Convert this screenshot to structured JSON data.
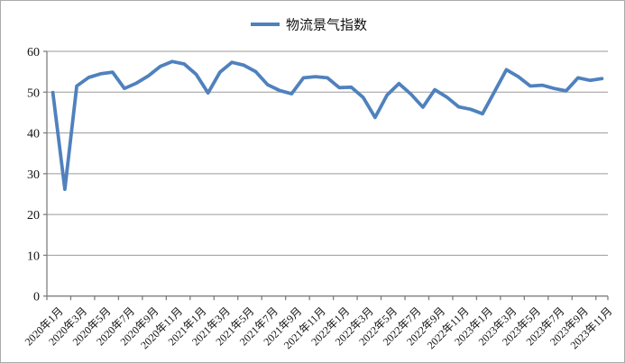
{
  "page": {
    "background": "#ffffff",
    "frame_border_color": "#ababab"
  },
  "legend": {
    "label": "物流景气指数",
    "line_color": "#4F81BD",
    "position": "top-center"
  },
  "chart_data": {
    "type": "line",
    "title": "",
    "xlabel": "",
    "ylabel": "",
    "ylim": [
      0,
      60
    ],
    "y_ticks": [
      0,
      10,
      20,
      30,
      40,
      50,
      60
    ],
    "grid": "horizontal",
    "gridline_color": "#9a9a9a",
    "axis_color": "#7f7f7f",
    "label_color": "#111111",
    "legend_position": "top-center",
    "x": [
      "2020年1月",
      "2020年2月",
      "2020年3月",
      "2020年4月",
      "2020年5月",
      "2020年6月",
      "2020年7月",
      "2020年8月",
      "2020年9月",
      "2020年10月",
      "2020年11月",
      "2020年12月",
      "2021年1月",
      "2021年2月",
      "2021年3月",
      "2021年4月",
      "2021年5月",
      "2021年6月",
      "2021年7月",
      "2021年8月",
      "2021年9月",
      "2021年10月",
      "2021年11月",
      "2021年12月",
      "2022年1月",
      "2022年2月",
      "2022年3月",
      "2022年4月",
      "2022年5月",
      "2022年6月",
      "2022年7月",
      "2022年8月",
      "2022年9月",
      "2022年10月",
      "2022年11月",
      "2022年12月",
      "2023年1月",
      "2023年2月",
      "2023年3月",
      "2023年4月",
      "2023年5月",
      "2023年6月",
      "2023年7月",
      "2023年8月",
      "2023年9月",
      "2023年10月",
      "2023年11月"
    ],
    "x_tick_labels": [
      "2020年1月",
      "2020年3月",
      "2020年5月",
      "2020年7月",
      "2020年9月",
      "2020年11月",
      "2021年1月",
      "2021年3月",
      "2021年5月",
      "2021年7月",
      "2021年9月",
      "2021年11月",
      "2022年1月",
      "2022年3月",
      "2022年5月",
      "2022年7月",
      "2022年9月",
      "2022年11月",
      "2023年1月",
      "2023年3月",
      "2023年5月",
      "2023年7月",
      "2023年9月",
      "2023年11月"
    ],
    "series": [
      {
        "name": "物流景气指数",
        "color": "#4F81BD",
        "values": [
          49.9,
          26.2,
          51.5,
          53.6,
          54.5,
          54.9,
          50.9,
          52.2,
          54.0,
          56.3,
          57.5,
          56.9,
          54.4,
          49.8,
          54.9,
          57.3,
          56.6,
          55.0,
          51.8,
          50.4,
          49.6,
          53.5,
          53.8,
          53.5,
          51.1,
          51.2,
          48.7,
          43.8,
          49.3,
          52.1,
          49.5,
          46.3,
          50.6,
          48.8,
          46.4,
          45.8,
          44.7,
          50.1,
          55.5,
          53.8,
          51.5,
          51.7,
          50.9,
          50.3,
          53.5,
          52.9,
          53.3
        ]
      }
    ]
  }
}
